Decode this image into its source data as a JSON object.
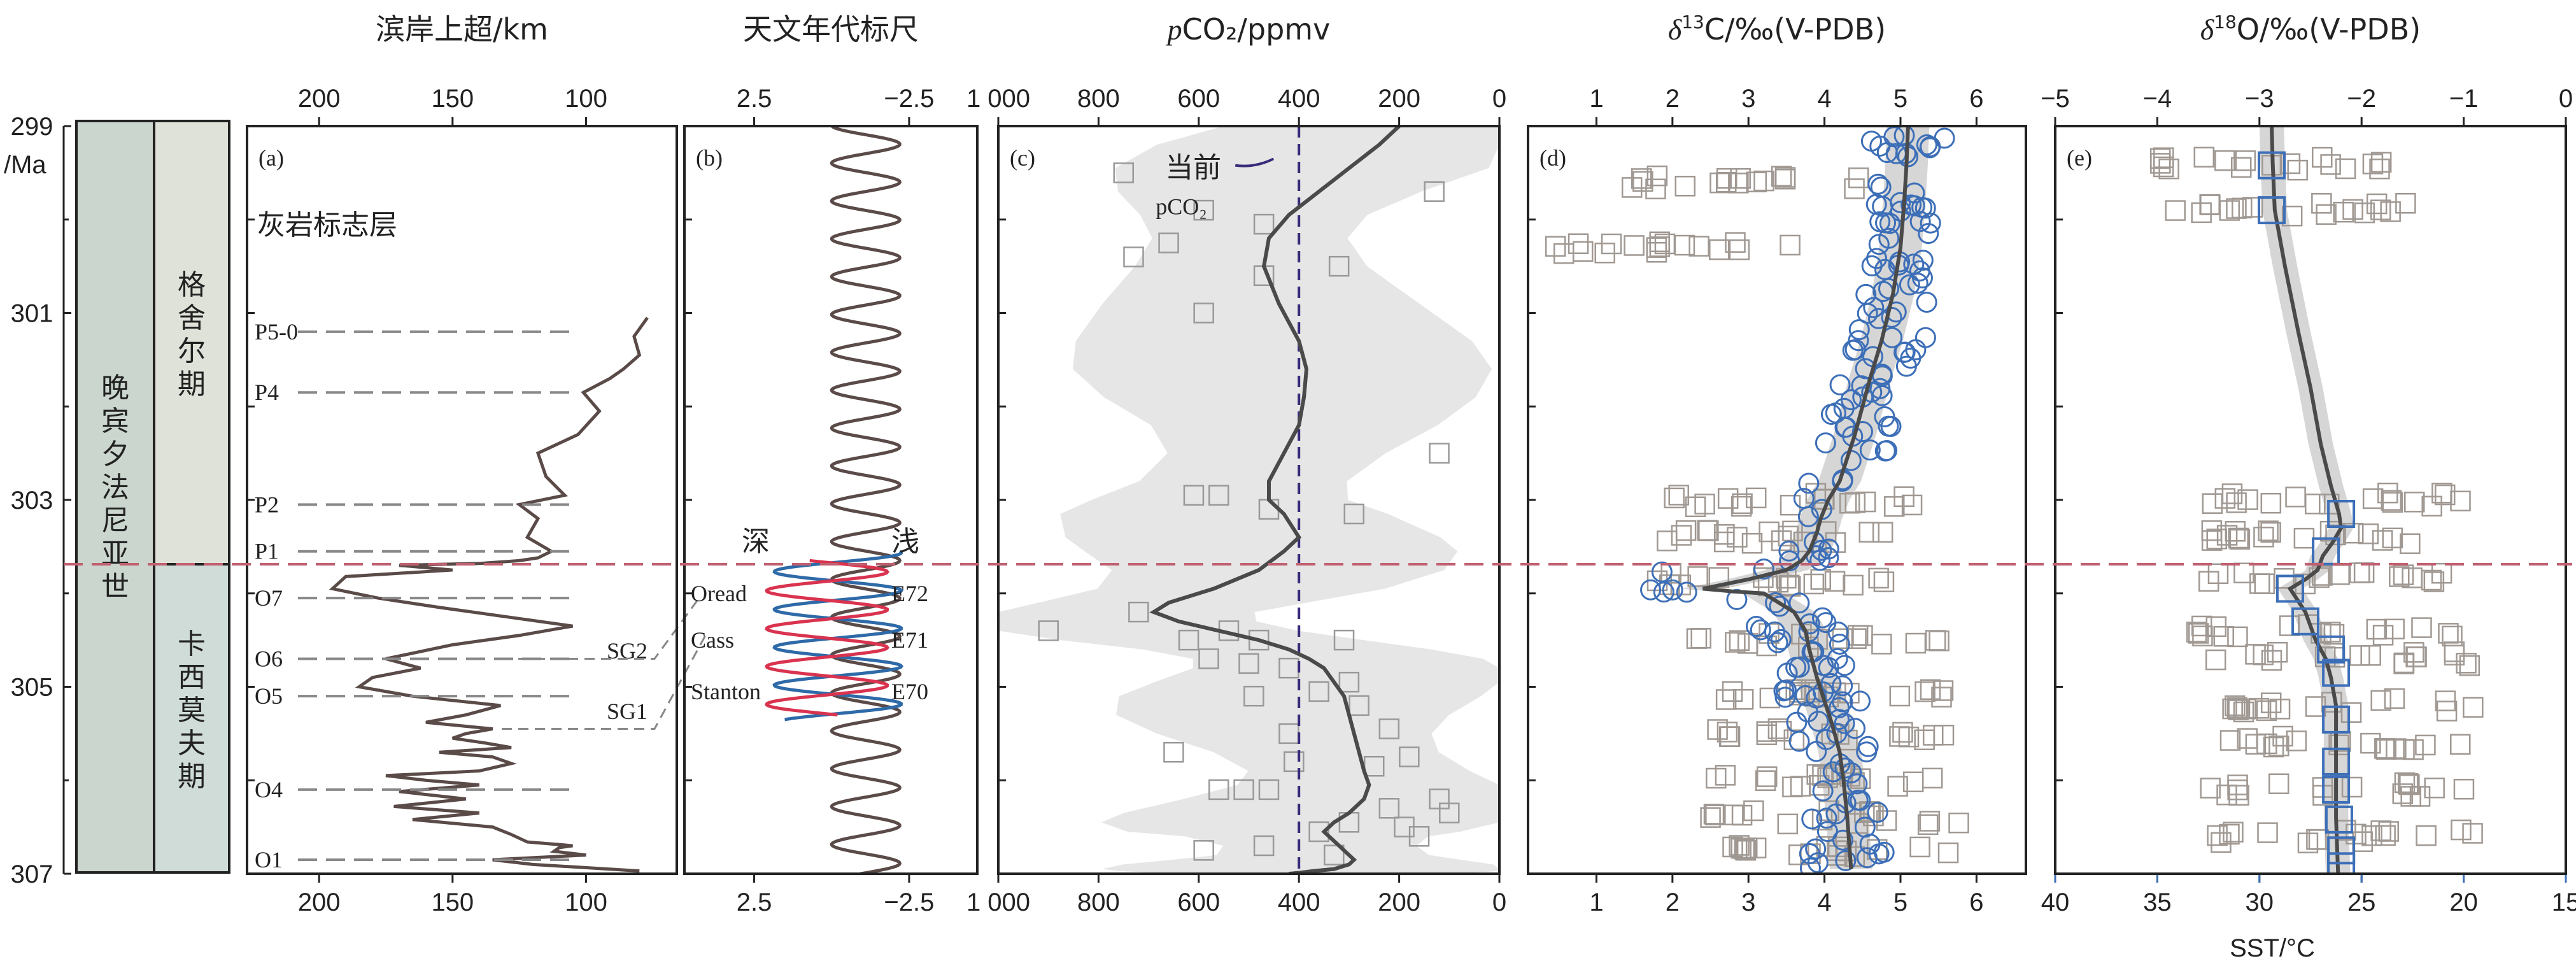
{
  "figure": {
    "age_unit": "/Ma",
    "period_label": "晚宾夕法尼亚世",
    "stage_upper": "格舍尔期",
    "stage_lower": "卡西莫夫期"
  },
  "chart_data": [
    {
      "id": "a",
      "type": "line",
      "panel_label": "(a)",
      "title": "滨岸上超/km",
      "note": "灰岩标志层",
      "xlim": [
        227,
        66
      ],
      "ylim": [
        299,
        307
      ],
      "x_ticks": [
        200,
        150,
        100
      ],
      "y_ticks": [
        299,
        301,
        303,
        305,
        307
      ],
      "markers": [
        {
          "label": "P5-0",
          "age": 301.2
        },
        {
          "label": "P4",
          "age": 301.85
        },
        {
          "label": "P2",
          "age": 303.05
        },
        {
          "label": "P1",
          "age": 303.55
        },
        {
          "label": "O7",
          "age": 304.05
        },
        {
          "label": "O6",
          "age": 304.7
        },
        {
          "label": "O5",
          "age": 305.1
        },
        {
          "label": "O4",
          "age": 306.1
        },
        {
          "label": "O1",
          "age": 306.85
        }
      ],
      "annotations": [
        "SG2",
        "SG1"
      ],
      "series": [
        {
          "color": "#5a4a48",
          "x": [
            77,
            82,
            80,
            86,
            91,
            101,
            95,
            103,
            118,
            115,
            108,
            125,
            118,
            122,
            113,
            118,
            125,
            140,
            170,
            150,
            190,
            195,
            178,
            155,
            130,
            105,
            125,
            150,
            175,
            162,
            180,
            185,
            165,
            132,
            145,
            160,
            135,
            145,
            150,
            138,
            128,
            155,
            135,
            128,
            140,
            175,
            160,
            140,
            170,
            145,
            172,
            140,
            165,
            135,
            128,
            122,
            105,
            110,
            112,
            100,
            135,
            120,
            80
          ],
          "y": [
            301.05,
            301.25,
            301.45,
            301.6,
            301.7,
            301.85,
            302.05,
            302.3,
            302.5,
            302.75,
            302.95,
            303.05,
            303.2,
            303.4,
            303.55,
            303.62,
            303.65,
            303.68,
            303.7,
            303.75,
            303.82,
            303.95,
            304.05,
            304.15,
            304.25,
            304.35,
            304.45,
            304.55,
            304.7,
            304.8,
            304.9,
            305.0,
            305.1,
            305.2,
            305.3,
            305.38,
            305.45,
            305.5,
            305.55,
            305.6,
            305.65,
            305.7,
            305.75,
            305.82,
            305.9,
            305.95,
            306.0,
            306.05,
            306.12,
            306.2,
            306.28,
            306.35,
            306.42,
            306.5,
            306.58,
            306.66,
            306.7,
            306.72,
            306.76,
            306.8,
            306.85,
            306.9,
            306.97
          ]
        }
      ]
    },
    {
      "id": "b",
      "type": "line",
      "panel_label": "(b)",
      "title": "天文年代标尺",
      "xlim": [
        4.75,
        -4.7
      ],
      "ylim": [
        299,
        307
      ],
      "x_ticks": [
        2.5,
        -2.5
      ],
      "x_tick_labels": [
        "2.5",
        "−2.5"
      ],
      "annotations": {
        "deep": "深",
        "shallow": "浅",
        "left": [
          "Oread",
          "Cass",
          "Stanton"
        ],
        "right": [
          "E72",
          "E71",
          "E70"
        ]
      },
      "series": [
        {
          "color": "#5a4a48",
          "center": -1.1,
          "amplitude": 1.1,
          "period_ma": 0.405
        },
        {
          "color": "#2e6aa8",
          "center": -0.2,
          "amplitude": 2.05,
          "period_ma": 0.405,
          "age_range": [
            303.55,
            305.35
          ]
        },
        {
          "color": "#d9334f",
          "center": 0.15,
          "amplitude": 1.95,
          "period_ma": 0.405,
          "phase_shift_ma": 0.2,
          "age_range": [
            303.65,
            305.3
          ]
        }
      ]
    },
    {
      "id": "c",
      "type": "line",
      "panel_label": "(c)",
      "title_prefix": "p",
      "title": "CO₂/ppmv",
      "xlim": [
        1000,
        0
      ],
      "ylim": [
        299,
        307
      ],
      "x_ticks": [
        1000,
        800,
        600,
        400,
        200,
        0
      ],
      "x_tick_labels": [
        "1 000",
        "800",
        "600",
        "400",
        "200",
        "0"
      ],
      "reference": {
        "value": 400,
        "label": "当前",
        "sublabel": "pCO₂"
      },
      "series": [
        {
          "color": "#4a4a4a",
          "x": [
            200,
            240,
            300,
            360,
            420,
            460,
            470,
            440,
            400,
            385,
            390,
            400,
            430,
            460,
            460,
            430,
            400,
            430,
            480,
            570,
            660,
            690,
            640,
            560,
            480,
            420,
            380,
            350,
            330,
            310,
            300,
            290,
            280,
            270,
            260,
            270,
            300,
            330,
            350,
            340,
            320,
            300,
            290,
            300,
            330,
            370,
            400,
            420
          ],
          "y": [
            299.0,
            299.2,
            299.45,
            299.7,
            299.95,
            300.2,
            300.5,
            300.9,
            301.3,
            301.6,
            301.9,
            302.2,
            302.5,
            302.8,
            303.0,
            303.15,
            303.4,
            303.55,
            303.75,
            303.95,
            304.1,
            304.2,
            304.3,
            304.4,
            304.5,
            304.6,
            304.7,
            304.8,
            304.95,
            305.1,
            305.3,
            305.5,
            305.7,
            305.9,
            306.05,
            306.2,
            306.35,
            306.45,
            306.55,
            306.6,
            306.7,
            306.8,
            306.85,
            306.9,
            306.95,
            306.97,
            306.99,
            307.0
          ]
        }
      ],
      "points": [
        [
          750,
          299.5
        ],
        [
          130,
          299.7
        ],
        [
          590,
          299.9
        ],
        [
          470,
          300.05
        ],
        [
          660,
          300.25
        ],
        [
          470,
          300.6
        ],
        [
          730,
          300.4
        ],
        [
          320,
          300.5
        ],
        [
          590,
          301.0
        ],
        [
          120,
          302.5
        ],
        [
          560,
          302.95
        ],
        [
          610,
          302.95
        ],
        [
          460,
          303.1
        ],
        [
          290,
          303.15
        ],
        [
          720,
          304.2
        ],
        [
          540,
          304.4
        ],
        [
          480,
          304.5
        ],
        [
          620,
          304.5
        ],
        [
          310,
          304.5
        ],
        [
          900,
          304.4
        ],
        [
          580,
          304.7
        ],
        [
          500,
          304.75
        ],
        [
          420,
          304.8
        ],
        [
          300,
          304.95
        ],
        [
          360,
          305.05
        ],
        [
          490,
          305.1
        ],
        [
          280,
          305.2
        ],
        [
          220,
          305.45
        ],
        [
          420,
          305.5
        ],
        [
          650,
          305.7
        ],
        [
          410,
          305.8
        ],
        [
          250,
          305.85
        ],
        [
          180,
          305.75
        ],
        [
          460,
          306.1
        ],
        [
          510,
          306.1
        ],
        [
          560,
          306.1
        ],
        [
          120,
          306.2
        ],
        [
          100,
          306.35
        ],
        [
          220,
          306.3
        ],
        [
          300,
          306.45
        ],
        [
          190,
          306.5
        ],
        [
          360,
          306.55
        ],
        [
          160,
          306.6
        ],
        [
          470,
          306.7
        ],
        [
          590,
          306.75
        ],
        [
          330,
          306.8
        ]
      ]
    },
    {
      "id": "d",
      "type": "scatter",
      "panel_label": "(d)",
      "title_prefix": "δ",
      "title_sup": "13",
      "title": "C/‰(V-PDB)",
      "xlim": [
        0.1,
        6.65
      ],
      "ylim": [
        299,
        307
      ],
      "x_ticks": [
        1,
        2,
        3,
        4,
        5,
        6
      ],
      "trend": {
        "color": "#4a4a4a",
        "x": [
          5.1,
          5.08,
          5.05,
          5.0,
          4.9,
          4.75,
          4.6,
          4.5,
          4.4,
          4.3,
          4.2,
          4.05,
          3.95,
          3.9,
          3.85,
          3.8,
          3.7,
          3.5,
          3.0,
          2.4,
          2.8,
          3.2,
          3.6,
          3.75,
          3.8,
          3.85,
          3.9,
          4.0,
          4.1,
          4.2,
          4.25,
          4.3,
          4.35
        ],
        "y": [
          299.0,
          299.4,
          299.8,
          300.3,
          300.8,
          301.3,
          301.7,
          302.0,
          302.3,
          302.55,
          302.8,
          303.0,
          303.2,
          303.35,
          303.45,
          303.55,
          303.65,
          303.75,
          303.85,
          303.95,
          303.98,
          304.0,
          304.2,
          304.4,
          304.6,
          304.75,
          304.9,
          305.15,
          305.4,
          305.7,
          306.0,
          306.4,
          306.95
        ]
      },
      "circles_count": 180,
      "squares_count": 230
    },
    {
      "id": "e",
      "type": "scatter",
      "panel_label": "(e)",
      "title_prefix": "δ",
      "title_sup": "18",
      "title": "O/‰(V-PDB)",
      "xlim": [
        -5,
        0
      ],
      "ylim": [
        299,
        307
      ],
      "x_ticks": [
        -5,
        -4,
        -3,
        -2,
        -1,
        0
      ],
      "x_tick_labels": [
        "−5",
        "−4",
        "−3",
        "−2",
        "−1",
        "0"
      ],
      "sst_axis": {
        "label": "SST/°C",
        "ticks": [
          40,
          35,
          30,
          25,
          20,
          15
        ]
      },
      "trend": {
        "color": "#4a4a4a",
        "x": [
          -2.88,
          -2.87,
          -2.85,
          -2.75,
          -2.62,
          -2.5,
          -2.4,
          -2.3,
          -2.22,
          -2.2,
          -2.28,
          -2.38,
          -2.43,
          -2.55,
          -2.7,
          -2.55,
          -2.45,
          -2.35,
          -2.3,
          -2.25,
          -2.25,
          -2.25,
          -2.25,
          -2.24,
          -2.23
        ],
        "y": [
          299.0,
          299.4,
          299.9,
          300.5,
          301.2,
          301.8,
          302.4,
          302.85,
          303.15,
          303.3,
          303.45,
          303.6,
          303.75,
          303.85,
          303.95,
          304.2,
          304.5,
          304.7,
          304.9,
          305.2,
          305.6,
          306.0,
          306.4,
          306.7,
          307.0
        ]
      },
      "blue_squares": [
        [
          -2.88,
          299.42
        ],
        [
          -2.88,
          299.9
        ],
        [
          -2.2,
          303.15
        ],
        [
          -2.35,
          303.55
        ],
        [
          -2.7,
          303.95
        ],
        [
          -2.55,
          304.3
        ],
        [
          -2.3,
          304.6
        ],
        [
          -2.25,
          304.85
        ],
        [
          -2.25,
          305.35
        ],
        [
          -2.25,
          305.8
        ],
        [
          -2.25,
          306.1
        ],
        [
          -2.22,
          306.42
        ],
        [
          -2.2,
          306.75
        ],
        [
          -2.2,
          306.92
        ]
      ]
    }
  ]
}
